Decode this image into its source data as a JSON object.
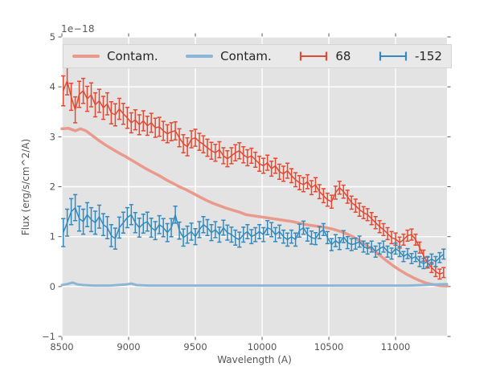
{
  "colors": {
    "figure_bg": "#ffffff",
    "axes_bg": "#e3e3e3",
    "grid": "#ffffff",
    "tick": "#555555",
    "text": "#555555",
    "legend_bg": "#e9e9e9",
    "red": "#e24a33",
    "blue": "#348abd",
    "salmon": "#ea9a8c",
    "lightblue": "#8cb6d6"
  },
  "legend": {
    "items": [
      {
        "label": "Contam.",
        "type": "line",
        "color": "#ea9a8c"
      },
      {
        "label": "Contam.",
        "type": "line",
        "color": "#8cb6d6"
      },
      {
        "label": "68",
        "type": "errorbar",
        "color": "#e24a33"
      },
      {
        "label": "-152",
        "type": "errorbar",
        "color": "#348abd"
      }
    ]
  },
  "chart_data": {
    "type": "line",
    "title": "",
    "offset_text": "1e−18",
    "xlabel": "Wavelength (A)",
    "ylabel": "Flux (erg/s/cm^2/A)",
    "xlim": [
      8500,
      11385
    ],
    "ylim": [
      -1,
      5
    ],
    "xticks": [
      8500,
      9000,
      9500,
      10000,
      10500,
      11000
    ],
    "xtick_labels": [
      "8500",
      "9000",
      "9500",
      "10000",
      "10500",
      "11000"
    ],
    "yticks": [
      -1,
      0,
      1,
      2,
      3,
      4,
      5
    ],
    "ytick_labels": [
      "−1",
      "0",
      "1",
      "2",
      "3",
      "4",
      "5"
    ],
    "grid": true,
    "legend_position": "upper center, horizontal row",
    "series": [
      {
        "name": "Contam.",
        "kind": "line",
        "color": "#ea9a8c",
        "width": 3.5,
        "x": [
          8500,
          8550,
          8600,
          8640,
          8680,
          8730,
          8780,
          8830,
          8880,
          8930,
          8980,
          9030,
          9080,
          9130,
          9180,
          9230,
          9280,
          9330,
          9380,
          9430,
          9480,
          9530,
          9580,
          9630,
          9680,
          9730,
          9780,
          9830,
          9880,
          9930,
          9980,
          10030,
          10080,
          10130,
          10180,
          10230,
          10280,
          10330,
          10380,
          10430,
          10480,
          10530,
          10580,
          10630,
          10680,
          10730,
          10780,
          10830,
          10880,
          10930,
          10980,
          11030,
          11080,
          11130,
          11180,
          11230,
          11280,
          11330,
          11385
        ],
        "y": [
          3.16,
          3.17,
          3.12,
          3.16,
          3.12,
          3.02,
          2.92,
          2.83,
          2.75,
          2.67,
          2.6,
          2.52,
          2.44,
          2.36,
          2.29,
          2.22,
          2.14,
          2.07,
          2.0,
          1.94,
          1.87,
          1.8,
          1.73,
          1.67,
          1.62,
          1.57,
          1.53,
          1.49,
          1.44,
          1.42,
          1.4,
          1.38,
          1.36,
          1.34,
          1.32,
          1.3,
          1.27,
          1.24,
          1.22,
          1.2,
          1.18,
          1.15,
          1.11,
          1.06,
          1.0,
          0.92,
          0.83,
          0.73,
          0.63,
          0.52,
          0.42,
          0.33,
          0.25,
          0.18,
          0.12,
          0.07,
          0.04,
          0.02,
          0.01
        ]
      },
      {
        "name": "Contam.",
        "kind": "line",
        "color": "#8cb6d6",
        "width": 3,
        "x": [
          8500,
          8540,
          8580,
          8620,
          8660,
          8740,
          8860,
          8980,
          9020,
          9060,
          9150,
          9300,
          9500,
          9700,
          9900,
          10100,
          10300,
          10500,
          10700,
          10900,
          11100,
          11200,
          11300,
          11385
        ],
        "y": [
          0.03,
          0.05,
          0.08,
          0.04,
          0.03,
          0.02,
          0.02,
          0.04,
          0.06,
          0.03,
          0.02,
          0.02,
          0.02,
          0.02,
          0.02,
          0.02,
          0.02,
          0.02,
          0.02,
          0.02,
          0.02,
          0.03,
          0.04,
          0.05
        ]
      },
      {
        "name": "68",
        "kind": "errorbar",
        "color": "#e24a33",
        "width": 1.5,
        "x": [
          8510,
          8540,
          8570,
          8600,
          8630,
          8660,
          8690,
          8720,
          8750,
          8780,
          8810,
          8840,
          8870,
          8900,
          8930,
          8960,
          8990,
          9020,
          9050,
          9080,
          9110,
          9140,
          9170,
          9200,
          9230,
          9260,
          9290,
          9320,
          9350,
          9380,
          9410,
          9440,
          9470,
          9500,
          9530,
          9560,
          9590,
          9620,
          9650,
          9680,
          9710,
          9740,
          9770,
          9800,
          9830,
          9860,
          9890,
          9920,
          9950,
          9980,
          10010,
          10040,
          10070,
          10100,
          10130,
          10160,
          10190,
          10220,
          10250,
          10280,
          10310,
          10340,
          10370,
          10400,
          10430,
          10460,
          10490,
          10520,
          10550,
          10580,
          10610,
          10640,
          10670,
          10700,
          10730,
          10760,
          10790,
          10820,
          10850,
          10880,
          10910,
          10940,
          10970,
          11000,
          11030,
          11060,
          11090,
          11120,
          11150,
          11180,
          11210,
          11240,
          11270,
          11300,
          11330,
          11360
        ],
        "y": [
          3.92,
          4.12,
          3.8,
          3.54,
          3.85,
          3.92,
          3.76,
          3.84,
          3.64,
          3.72,
          3.58,
          3.66,
          3.48,
          3.44,
          3.56,
          3.46,
          3.38,
          3.28,
          3.34,
          3.24,
          3.32,
          3.22,
          3.28,
          3.18,
          3.2,
          3.12,
          3.06,
          3.1,
          3.12,
          2.98,
          2.86,
          2.8,
          2.95,
          2.98,
          2.9,
          2.85,
          2.78,
          2.72,
          2.68,
          2.74,
          2.62,
          2.56,
          2.62,
          2.68,
          2.72,
          2.64,
          2.58,
          2.62,
          2.54,
          2.46,
          2.42,
          2.48,
          2.36,
          2.42,
          2.3,
          2.26,
          2.32,
          2.22,
          2.14,
          2.08,
          2.04,
          2.1,
          1.98,
          2.04,
          1.9,
          1.82,
          1.74,
          1.7,
          1.88,
          1.98,
          1.9,
          1.8,
          1.68,
          1.62,
          1.54,
          1.48,
          1.44,
          1.36,
          1.28,
          1.2,
          1.14,
          1.06,
          0.98,
          0.95,
          0.88,
          0.94,
          1.02,
          1.04,
          0.94,
          0.78,
          0.62,
          0.48,
          0.38,
          0.3,
          0.25,
          0.28
        ],
        "yerr": [
          0.3,
          0.28,
          0.27,
          0.26,
          0.26,
          0.25,
          0.25,
          0.24,
          0.24,
          0.23,
          0.23,
          0.22,
          0.22,
          0.22,
          0.21,
          0.21,
          0.21,
          0.2,
          0.2,
          0.2,
          0.2,
          0.19,
          0.19,
          0.19,
          0.19,
          0.19,
          0.18,
          0.18,
          0.18,
          0.18,
          0.18,
          0.18,
          0.17,
          0.17,
          0.17,
          0.17,
          0.17,
          0.17,
          0.17,
          0.16,
          0.16,
          0.16,
          0.16,
          0.16,
          0.16,
          0.16,
          0.16,
          0.15,
          0.15,
          0.15,
          0.15,
          0.15,
          0.15,
          0.15,
          0.15,
          0.15,
          0.15,
          0.14,
          0.14,
          0.14,
          0.14,
          0.14,
          0.14,
          0.14,
          0.14,
          0.14,
          0.13,
          0.13,
          0.13,
          0.13,
          0.13,
          0.13,
          0.13,
          0.13,
          0.13,
          0.12,
          0.12,
          0.12,
          0.12,
          0.12,
          0.12,
          0.12,
          0.12,
          0.12,
          0.11,
          0.11,
          0.11,
          0.11,
          0.11,
          0.11,
          0.11,
          0.11,
          0.1,
          0.1,
          0.1,
          0.1
        ]
      },
      {
        "name": "-152",
        "kind": "errorbar",
        "color": "#348abd",
        "width": 1.5,
        "x": [
          8510,
          8540,
          8570,
          8600,
          8630,
          8660,
          8690,
          8720,
          8750,
          8780,
          8810,
          8840,
          8870,
          8900,
          8930,
          8960,
          8990,
          9020,
          9050,
          9080,
          9110,
          9140,
          9170,
          9200,
          9230,
          9260,
          9290,
          9320,
          9350,
          9380,
          9410,
          9440,
          9470,
          9500,
          9530,
          9560,
          9590,
          9620,
          9650,
          9680,
          9710,
          9740,
          9770,
          9800,
          9830,
          9860,
          9890,
          9920,
          9950,
          9980,
          10010,
          10040,
          10070,
          10100,
          10130,
          10160,
          10190,
          10220,
          10250,
          10280,
          10310,
          10340,
          10370,
          10400,
          10430,
          10460,
          10490,
          10520,
          10550,
          10580,
          10610,
          10640,
          10670,
          10700,
          10730,
          10760,
          10790,
          10820,
          10850,
          10880,
          10910,
          10940,
          10970,
          11000,
          11030,
          11060,
          11090,
          11120,
          11150,
          11180,
          11210,
          11240,
          11270,
          11300,
          11330,
          11360
        ],
        "y": [
          1.08,
          1.28,
          1.5,
          1.58,
          1.36,
          1.3,
          1.44,
          1.34,
          1.28,
          1.4,
          1.24,
          1.18,
          1.02,
          0.96,
          1.18,
          1.28,
          1.38,
          1.44,
          1.28,
          1.18,
          1.26,
          1.3,
          1.18,
          1.12,
          1.24,
          1.18,
          1.08,
          1.18,
          1.44,
          1.12,
          0.98,
          1.04,
          1.1,
          1.0,
          1.14,
          1.24,
          1.18,
          1.08,
          1.14,
          1.04,
          1.18,
          1.08,
          1.04,
          0.98,
          0.94,
          1.04,
          1.1,
          1.0,
          1.04,
          1.1,
          1.04,
          1.18,
          1.14,
          1.04,
          1.1,
          1.0,
          0.94,
          1.0,
          0.94,
          1.12,
          1.18,
          1.04,
          0.98,
          0.96,
          1.08,
          1.14,
          0.98,
          0.84,
          0.92,
          0.86,
          1.0,
          0.88,
          0.84,
          0.86,
          0.9,
          0.8,
          0.76,
          0.8,
          0.7,
          0.76,
          0.8,
          0.7,
          0.66,
          0.76,
          0.7,
          0.6,
          0.66,
          0.56,
          0.6,
          0.5,
          0.46,
          0.5,
          0.55,
          0.5,
          0.58,
          0.65
        ],
        "yerr": [
          0.28,
          0.27,
          0.26,
          0.26,
          0.25,
          0.25,
          0.24,
          0.24,
          0.23,
          0.23,
          0.22,
          0.22,
          0.22,
          0.21,
          0.21,
          0.21,
          0.2,
          0.2,
          0.2,
          0.19,
          0.19,
          0.19,
          0.19,
          0.18,
          0.18,
          0.18,
          0.18,
          0.18,
          0.17,
          0.17,
          0.17,
          0.17,
          0.17,
          0.16,
          0.16,
          0.16,
          0.16,
          0.16,
          0.16,
          0.15,
          0.15,
          0.15,
          0.15,
          0.15,
          0.15,
          0.15,
          0.14,
          0.14,
          0.14,
          0.14,
          0.14,
          0.14,
          0.14,
          0.14,
          0.13,
          0.13,
          0.13,
          0.13,
          0.13,
          0.13,
          0.13,
          0.13,
          0.13,
          0.12,
          0.12,
          0.12,
          0.12,
          0.12,
          0.12,
          0.12,
          0.12,
          0.12,
          0.12,
          0.11,
          0.11,
          0.11,
          0.11,
          0.11,
          0.11,
          0.11,
          0.11,
          0.11,
          0.11,
          0.11,
          0.1,
          0.1,
          0.1,
          0.1,
          0.1,
          0.1,
          0.1,
          0.1,
          0.1,
          0.1,
          0.1,
          0.1
        ]
      }
    ]
  }
}
